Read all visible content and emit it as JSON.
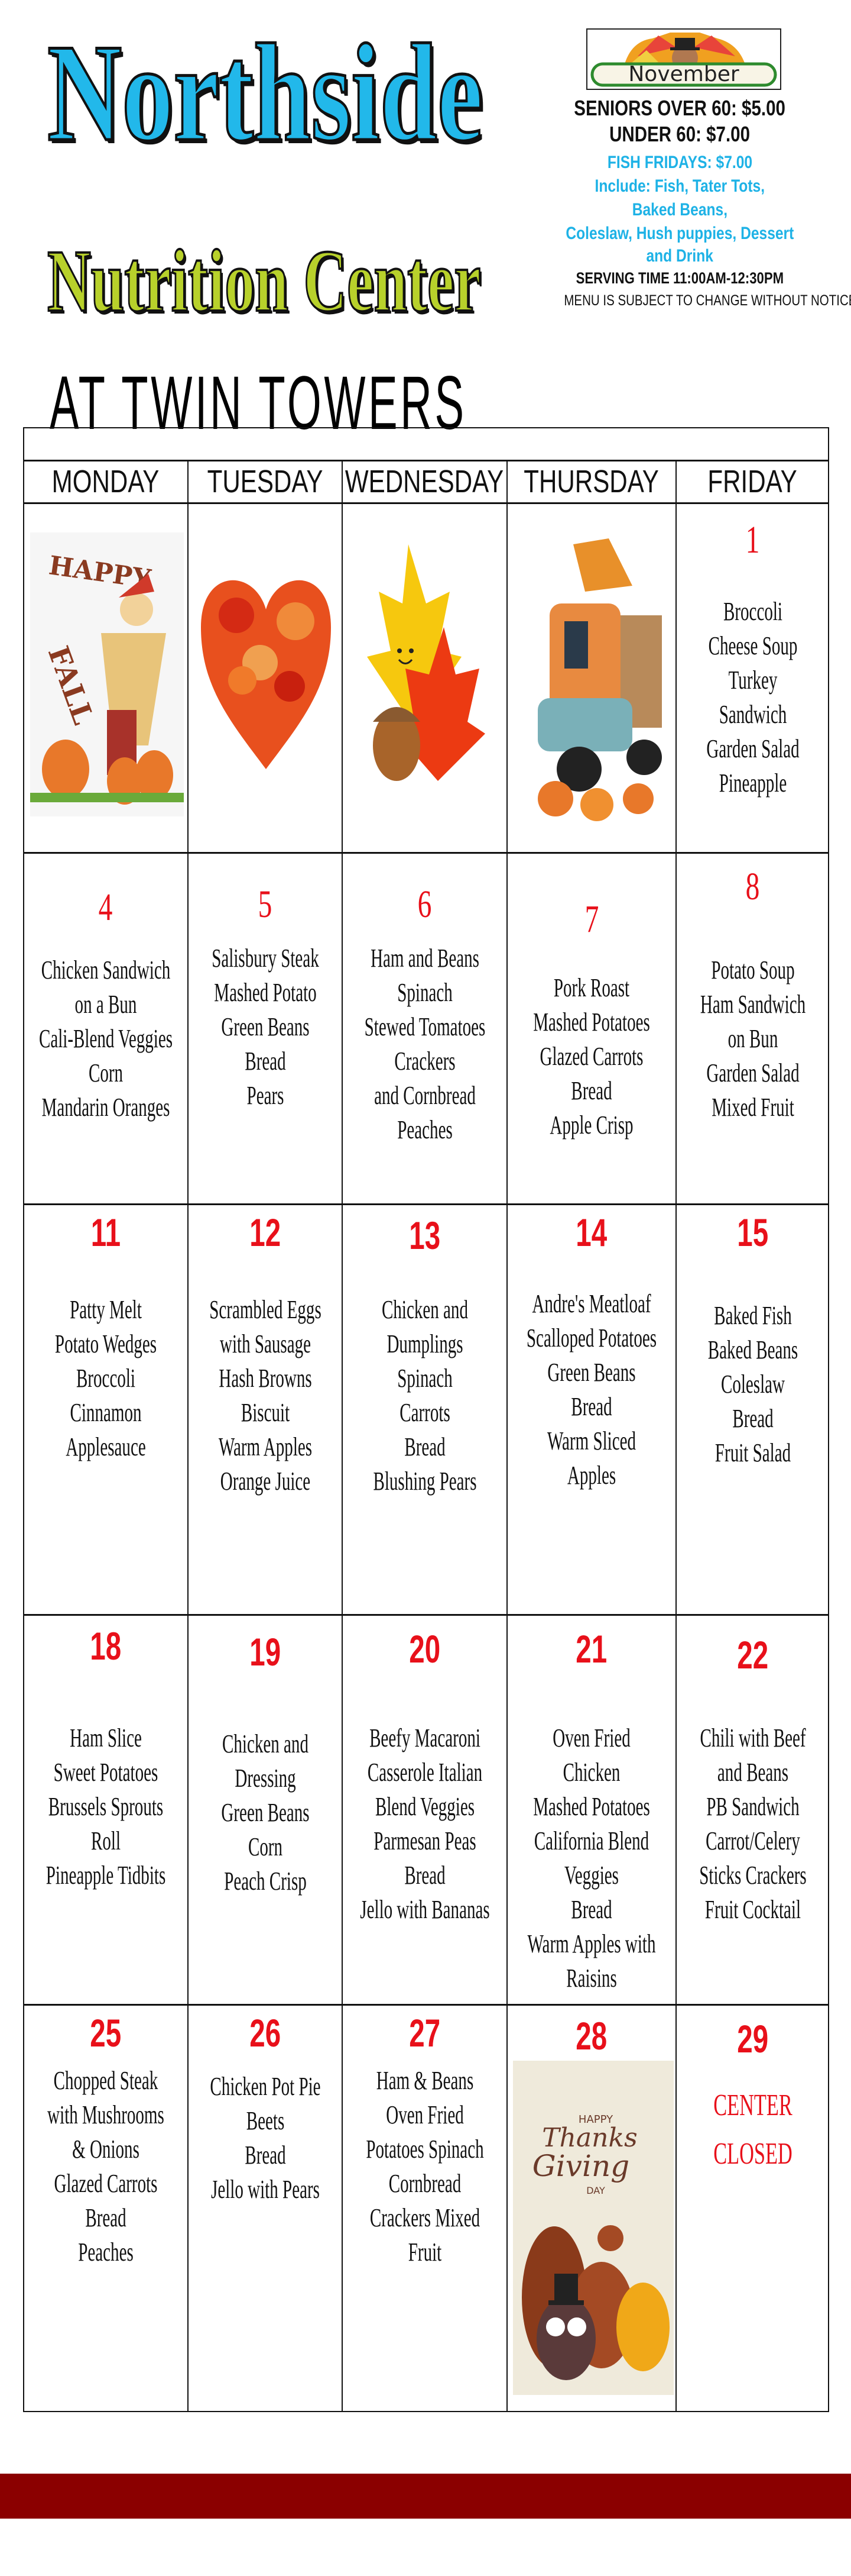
{
  "header": {
    "title_line1": "Northside",
    "title_line2": "Nutrition Center",
    "title_line3": "AT TWIN TOWERS",
    "month_banner": "November",
    "price_seniors": "SENIORS OVER 60: $5.00",
    "price_under": "UNDER 60: $7.00",
    "fish_fridays": "FISH FRIDAYS: $7.00",
    "fish_include_lines": [
      "Include: Fish, Tater Tots,",
      "Baked Beans,",
      "Coleslaw, Hush puppies, Dessert",
      "and Drink"
    ],
    "serving_time": "SERVING TIME 11:00AM-12:30PM",
    "notice": "MENU IS SUBJECT TO CHANGE WITHOUT NOTICE"
  },
  "colors": {
    "title_blue": "#22b8ea",
    "title_green": "#b8d12b",
    "date_red": "#e8101a",
    "fish_blue": "#1eb2e6",
    "footer_bar": "#8b0000"
  },
  "weekdays": [
    "MONDAY",
    "TUESDAY",
    "WEDNESDAY",
    "THURSDAY",
    "FRIDAY"
  ],
  "weeks": [
    [
      {
        "image": "happy-fall-scarecrow",
        "image_text": [
          "HAPPY",
          "FALL"
        ]
      },
      {
        "image": "autumn-leaf-heart"
      },
      {
        "image": "smiling-leaves-acorn"
      },
      {
        "image": "autumn-pickup-truck"
      },
      {
        "date": "1",
        "items": [
          "Broccoli",
          "Cheese Soup",
          "Turkey",
          "Sandwich",
          "Garden Salad",
          "Pineapple"
        ]
      }
    ],
    [
      {
        "date": "4",
        "items": [
          "Chicken Sandwich",
          "on a Bun",
          "Cali-Blend Veggies",
          "Corn",
          "Mandarin Oranges"
        ]
      },
      {
        "date": "5",
        "items": [
          "Salisbury Steak",
          "Mashed Potato",
          "Green Beans",
          "Bread",
          "Pears"
        ]
      },
      {
        "date": "6",
        "items": [
          "Ham and Beans",
          "Spinach",
          "Stewed Tomatoes",
          "Crackers",
          "and Cornbread",
          "Peaches"
        ]
      },
      {
        "date": "7",
        "items": [
          "Pork Roast",
          "Mashed Potatoes",
          "Glazed Carrots",
          "Bread",
          "Apple Crisp"
        ]
      },
      {
        "date": "8",
        "items": [
          "Potato Soup",
          "Ham Sandwich",
          "on Bun",
          "Garden Salad",
          "Mixed Fruit"
        ]
      }
    ],
    [
      {
        "date": "11",
        "items": [
          "Patty Melt",
          "Potato Wedges",
          "Broccoli",
          "Cinnamon",
          "Applesauce"
        ]
      },
      {
        "date": "12",
        "items": [
          "Scrambled Eggs",
          "with Sausage",
          "Hash Browns",
          "Biscuit",
          "Warm Apples",
          "Orange Juice"
        ]
      },
      {
        "date": "13",
        "items": [
          "Chicken and",
          "Dumplings",
          "Spinach",
          "Carrots",
          "Bread",
          "Blushing Pears"
        ]
      },
      {
        "date": "14",
        "items": [
          "Andre's Meatloaf",
          "Scalloped Potatoes",
          "Green Beans",
          "Bread",
          "Warm Sliced",
          "Apples"
        ]
      },
      {
        "date": "15",
        "items": [
          "Baked Fish",
          "Baked Beans",
          "Coleslaw",
          "Bread",
          "Fruit Salad"
        ]
      }
    ],
    [
      {
        "date": "18",
        "items": [
          "Ham Slice",
          "Sweet Potatoes",
          "Brussels Sprouts",
          "Roll",
          "Pineapple Tidbits"
        ]
      },
      {
        "date": "19",
        "items": [
          "Chicken and",
          "Dressing",
          "Green Beans",
          "Corn",
          "Peach Crisp"
        ]
      },
      {
        "date": "20",
        "items": [
          "Beefy Macaroni",
          "Casserole Italian",
          "Blend Veggies",
          "Parmesan Peas",
          "Bread",
          "Jello with Bananas"
        ]
      },
      {
        "date": "21",
        "items": [
          "Oven Fried",
          "Chicken",
          "Mashed Potatoes",
          "California Blend",
          "Veggies",
          "Bread",
          "Warm Apples with",
          "Raisins"
        ]
      },
      {
        "date": "22",
        "items": [
          "Chili with Beef",
          "and Beans",
          "PB Sandwich",
          "Carrot/Celery",
          "Sticks Crackers",
          "Fruit Cocktail"
        ]
      }
    ],
    [
      {
        "date": "25",
        "items": [
          "Chopped Steak",
          "with Mushrooms",
          "& Onions",
          "Glazed Carrots",
          "Bread",
          "Peaches"
        ]
      },
      {
        "date": "26",
        "items": [
          "Chicken Pot Pie",
          "Beets",
          "Bread",
          "Jello with Pears"
        ]
      },
      {
        "date": "27",
        "items": [
          "Ham & Beans",
          "Oven Fried",
          "Potatoes Spinach",
          "Cornbread",
          "Crackers Mixed",
          "Fruit"
        ]
      },
      {
        "date": "28",
        "image": "thanksgiving-turkey",
        "image_text": [
          "HAPPY",
          "Thanks",
          "Giving",
          "DAY"
        ]
      },
      {
        "date": "29",
        "closed": [
          "CENTER",
          "CLOSED"
        ]
      }
    ]
  ]
}
